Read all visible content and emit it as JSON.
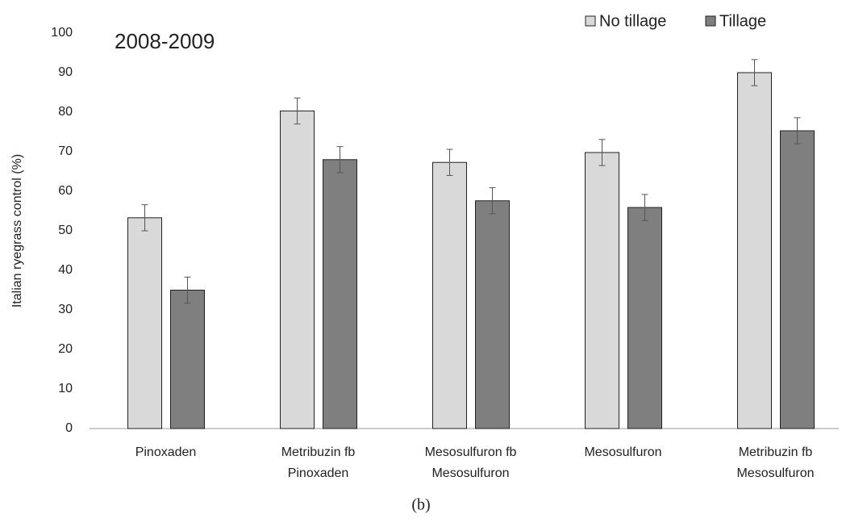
{
  "chart_data": {
    "type": "bar",
    "annotation": "2008-2009",
    "caption": "(b)",
    "y_label": "Italian ryegrass control (%)",
    "categories": [
      [
        "Pinoxaden"
      ],
      [
        "Metribuzin fb",
        "Pinoxaden"
      ],
      [
        "Mesosulfuron fb",
        "Mesosulfuron"
      ],
      [
        "Mesosulfuron"
      ],
      [
        "Metribuzin fb",
        "Mesosulfuron"
      ]
    ],
    "series": [
      {
        "name": "No tillage",
        "color": "#d9d9d9",
        "values": [
          53.3,
          80.3,
          67.3,
          69.8,
          90
        ],
        "errors": [
          3.3,
          3.3,
          3.3,
          3.3,
          3.3
        ]
      },
      {
        "name": "Tillage",
        "color": "#7f7f7f",
        "values": [
          35,
          68,
          57.6,
          55.9,
          75.3
        ],
        "errors": [
          3.3,
          3.3,
          3.3,
          3.3,
          3.3
        ]
      }
    ],
    "ylim": [
      0,
      100
    ],
    "yticks": [
      0,
      10,
      20,
      30,
      40,
      50,
      60,
      70,
      80,
      90,
      100
    ],
    "legend": "top-right"
  }
}
